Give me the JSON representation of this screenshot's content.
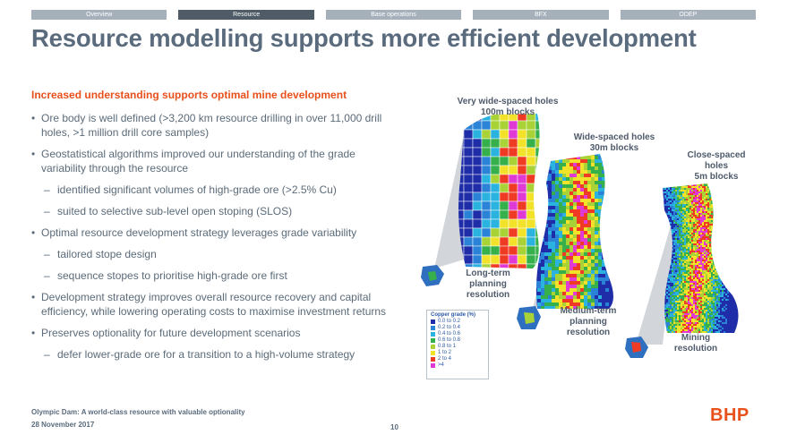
{
  "nav": {
    "tabs": [
      {
        "label": "Overview"
      },
      {
        "label": "Resource"
      },
      {
        "label": "Base operations"
      },
      {
        "label": "BFX"
      },
      {
        "label": "ODEP"
      }
    ],
    "active_index": 1
  },
  "title": "Resource modelling supports more efficient development",
  "subhead": "Increased understanding supports optimal mine development",
  "bullets": {
    "b1": "Ore body is well defined (>3,200 km resource drilling in over 11,000 drill holes, >1 million drill core samples)",
    "b2": "Geostatistical algorithms improved our understanding of the grade variability through the resource",
    "b2a": "identified significant volumes of high-grade ore (>2.5% Cu)",
    "b2b": "suited to selective sub-level open stoping (SLOS)",
    "b3": "Optimal resource development strategy leverages grade variability",
    "b3a": "tailored stope design",
    "b3b": "sequence stopes to prioritise high-grade ore first",
    "b4": "Development strategy improves overall resource recovery and capital efficiency, while lowering operating costs to maximise investment returns",
    "b5": "Preserves optionality for future development scenarios",
    "b5a": "defer lower-grade ore for a transition to a high-volume strategy"
  },
  "figure": {
    "panel1_label": "Very wide-spaced holes\n100m blocks",
    "panel2_label": "Wide-spaced holes\n30m blocks",
    "panel3_label": "Close-spaced\nholes\n5m blocks",
    "res1": "Long-term\nplanning\nresolution",
    "res2": "Medium-term\nplanning\nresolution",
    "res3": "Mining\nresolution",
    "legend": {
      "title": "Copper grade (%)",
      "items": [
        {
          "label": "0.0 to 0.2",
          "color": "#1f2ea8"
        },
        {
          "label": "0.2 to 0.4",
          "color": "#2a83d6"
        },
        {
          "label": "0.4 to 0.6",
          "color": "#2bb3e0"
        },
        {
          "label": "0.6 to 0.8",
          "color": "#36b04a"
        },
        {
          "label": "0.8 to 1",
          "color": "#a8d236"
        },
        {
          "label": "1 to 2",
          "color": "#f2e22a"
        },
        {
          "label": "2 to 4",
          "color": "#ef3b24"
        },
        {
          "label": ">4",
          "color": "#e03ad6"
        }
      ]
    }
  },
  "footer": {
    "line1": "Olympic Dam: A world-class resource with valuable optionality",
    "line2": "28 November 2017",
    "page": "10",
    "logo": "BHP"
  }
}
